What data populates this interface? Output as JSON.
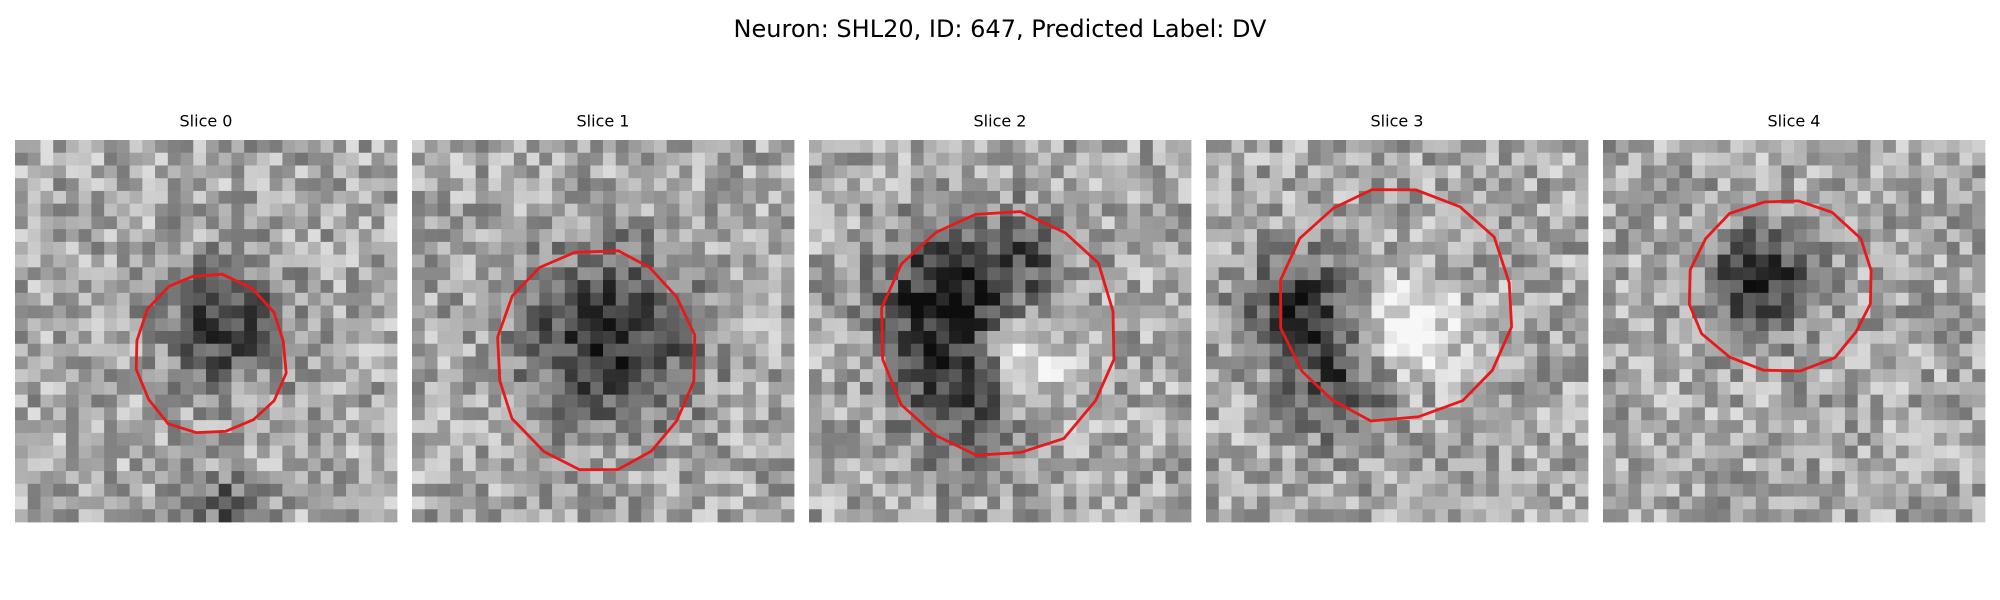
{
  "title": "Neuron: SHL20, ID: 647, Predicted Label: DV",
  "panels": [
    {
      "title": "Slice 0"
    },
    {
      "title": "Slice 1"
    },
    {
      "title": "Slice 2"
    },
    {
      "title": "Slice 3"
    },
    {
      "title": "Slice 4"
    }
  ]
}
